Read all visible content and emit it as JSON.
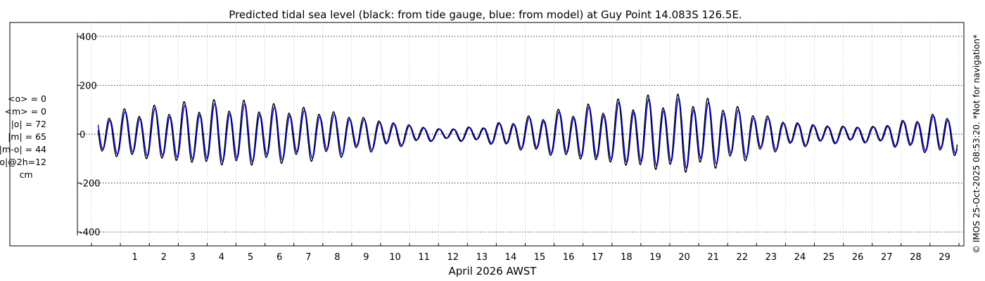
{
  "chart_data": {
    "type": "line",
    "title": "Predicted tidal sea level (black: from tide gauge, blue: from model) at Guy Point 14.083S 126.5E.",
    "xlabel": "April 2026 AWST",
    "ylabel": "",
    "xlim": [
      0,
      30
    ],
    "ylim": [
      -420,
      420
    ],
    "ytick_values": [
      400,
      200,
      0,
      -200,
      -400
    ],
    "ytick_labels": [
      "400",
      "200",
      "0",
      "-200",
      "-400"
    ],
    "xtick_values": [
      1,
      2,
      3,
      4,
      5,
      6,
      7,
      8,
      9,
      10,
      11,
      12,
      13,
      14,
      15,
      16,
      17,
      18,
      19,
      20,
      21,
      22,
      23,
      24,
      25,
      26,
      27,
      28,
      29
    ],
    "xtick_labels": [
      "1",
      "2",
      "3",
      "4",
      "5",
      "6",
      "7",
      "8",
      "9",
      "10",
      "11",
      "12",
      "13",
      "14",
      "15",
      "16",
      "17",
      "18",
      "19",
      "20",
      "21",
      "22",
      "23",
      "24",
      "25",
      "26",
      "27",
      "28",
      "29"
    ],
    "grid": true,
    "series": [
      {
        "name": "from tide gauge",
        "color": "#000000",
        "model": {
          "start_day": 0.23,
          "end_day": 29.95,
          "semidiurnal_period_days": 0.5175,
          "semidiurnal_phase_days": 0.1,
          "diurnal_period_days": 1.0,
          "diurnal_phase_days": 0.2,
          "amplitude_envelope_days": [
            0,
            1.5,
            3.7,
            5.0,
            8.0,
            10.5,
            12.0,
            13.5,
            16.0,
            19.0,
            20.7,
            22.0,
            24.0,
            25.5,
            27.0,
            28.0,
            29.5,
            30.0
          ],
          "amplitude_envelope_cm": [
            90,
            110,
            140,
            145,
            110,
            55,
            25,
            35,
            100,
            160,
            170,
            135,
            60,
            40,
            35,
            60,
            95,
            95
          ]
        }
      },
      {
        "name": "from model",
        "color": "#0000cc",
        "model": {
          "start_day": 0.23,
          "end_day": 29.95,
          "semidiurnal_period_days": 0.5175,
          "semidiurnal_phase_days": 0.13,
          "diurnal_period_days": 1.0,
          "diurnal_phase_days": 0.23,
          "amplitude_envelope_days": [
            0,
            1.5,
            3.7,
            5.0,
            8.0,
            10.5,
            12.0,
            13.5,
            16.0,
            19.0,
            20.7,
            22.0,
            24.0,
            25.5,
            27.0,
            28.0,
            29.5,
            30.0
          ],
          "amplitude_envelope_cm": [
            80,
            98,
            125,
            130,
            98,
            50,
            23,
            32,
            90,
            145,
            152,
            120,
            55,
            37,
            32,
            55,
            85,
            85
          ]
        }
      }
    ],
    "annotations": [
      "<o> = 0",
      "<m> = 0",
      "|o| = 72",
      "|m| = 65",
      "|m-o| = 44",
      "|m-o|@2h=12",
      "cm"
    ],
    "credit": "© IMOS 25-Oct-2025 08:53:20. *Not for navigation*"
  }
}
